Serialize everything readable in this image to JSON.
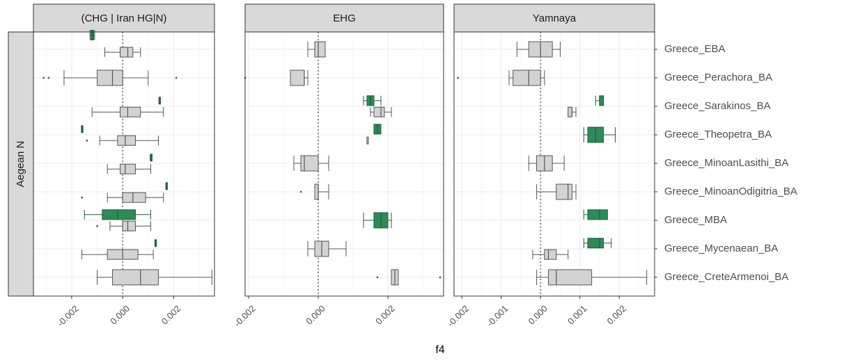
{
  "chart_data": {
    "type": "boxplot",
    "xlabel": "f4",
    "row_strip": "Aegean N",
    "categories": [
      "Greece_EBA",
      "Greece_Perachora_BA",
      "Greece_Sarakinos_BA",
      "Greece_Theopetra_BA",
      "Greece_MinoanLasithi_BA",
      "Greece_MinoanOdigitria_BA",
      "Greece_MBA",
      "Greece_Mycenaean_BA",
      "Greece_CreteArmenoi_BA"
    ],
    "colors": {
      "highlight": "#2e8b57",
      "normal": "#d3d3d3",
      "outline": "#555555"
    },
    "panels": [
      {
        "title": "(CHG | Iran HG|N)",
        "xlim": [
          -0.0035,
          0.0036
        ],
        "xticks": [
          -0.002,
          0.0,
          0.002
        ],
        "xtick_labels": [
          "-0.002",
          "0.000",
          "0.002"
        ],
        "boxes": [
          {
            "slot": 0.5,
            "color": "highlight",
            "stats": [
              -0.00128,
              -0.00124,
              -0.0012,
              -0.00114,
              -0.0011
            ],
            "outliers": []
          },
          {
            "slot": 1.1,
            "color": "normal",
            "stats": [
              -0.0007,
              -0.0001,
              0.0002,
              0.0004,
              0.0007
            ],
            "outliers": []
          },
          {
            "slot": 2,
            "color": "normal",
            "stats": [
              -0.0023,
              -0.001,
              -0.0004,
              0.0,
              0.001
            ],
            "outliers": [
              -0.0031,
              -0.0029,
              0.0021
            ]
          },
          {
            "slot": 2.8,
            "color": "highlight",
            "stats": [
              0.00142,
              0.00143,
              0.00144,
              0.00145,
              0.00146
            ],
            "outliers": []
          },
          {
            "slot": 3.2,
            "color": "normal",
            "stats": [
              -0.0012,
              -0.0001,
              0.0002,
              0.0007,
              0.0016
            ],
            "outliers": []
          },
          {
            "slot": 3.8,
            "color": "highlight",
            "stats": [
              -0.00162,
              -0.00161,
              -0.0016,
              -0.00159,
              -0.00158
            ],
            "outliers": []
          },
          {
            "slot": 4.2,
            "color": "normal",
            "stats": [
              -0.0009,
              -0.0002,
              0.0001,
              0.0005,
              0.0014
            ],
            "outliers": [
              -0.0014
            ]
          },
          {
            "slot": 4.8,
            "color": "highlight",
            "stats": [
              0.00108,
              0.0011,
              0.00111,
              0.00112,
              0.00114
            ],
            "outliers": []
          },
          {
            "slot": 5.2,
            "color": "normal",
            "stats": [
              -0.0006,
              -0.0001,
              0.0001,
              0.0005,
              0.0011
            ],
            "outliers": []
          },
          {
            "slot": 5.8,
            "color": "highlight",
            "stats": [
              0.00169,
              0.0017,
              0.00171,
              0.00172,
              0.00173
            ],
            "outliers": []
          },
          {
            "slot": 6.2,
            "color": "normal",
            "stats": [
              -0.0006,
              0.0,
              0.0004,
              0.0009,
              0.0016
            ],
            "outliers": [
              -0.0016
            ]
          },
          {
            "slot": 6.8,
            "color": "highlight",
            "stats": [
              -0.0015,
              -0.0008,
              -0.0002,
              0.0005,
              0.0011
            ],
            "outliers": []
          },
          {
            "slot": 7.2,
            "color": "normal",
            "stats": [
              -0.0005,
              0.0,
              0.0002,
              0.0005,
              0.0011
            ],
            "outliers": [
              -0.001
            ]
          },
          {
            "slot": 7.8,
            "color": "highlight",
            "stats": [
              0.00126,
              0.00127,
              0.00128,
              0.00129,
              0.0013
            ],
            "outliers": []
          },
          {
            "slot": 8.2,
            "color": "normal",
            "stats": [
              -0.0016,
              -0.0006,
              0.0,
              0.0006,
              0.0012
            ],
            "outliers": []
          },
          {
            "slot": 9,
            "color": "normal",
            "stats": [
              -0.001,
              -0.0004,
              0.0007,
              0.0014,
              0.0035
            ],
            "outliers": []
          }
        ]
      },
      {
        "title": "EHG",
        "xlim": [
          -0.0021,
          0.0036
        ],
        "xticks": [
          -0.002,
          0.0,
          0.002
        ],
        "xtick_labels": [
          "-0.002",
          "0.000",
          "0.002"
        ],
        "boxes": [
          {
            "slot": 1,
            "color": "normal",
            "stats": [
              -0.0003,
              -0.0001,
              0.0,
              0.0002,
              0.0002
            ],
            "outliers": []
          },
          {
            "slot": 2,
            "color": "normal",
            "stats": [
              -0.0008,
              -0.0008,
              -0.0004,
              -0.0004,
              -0.0003
            ],
            "outliers": [
              -0.0021
            ]
          },
          {
            "slot": 2.8,
            "color": "highlight",
            "stats": [
              0.0013,
              0.0014,
              0.0015,
              0.0016,
              0.0018
            ],
            "outliers": []
          },
          {
            "slot": 3.2,
            "color": "normal",
            "stats": [
              0.0015,
              0.0016,
              0.0018,
              0.0019,
              0.0021
            ],
            "outliers": []
          },
          {
            "slot": 3.8,
            "color": "highlight",
            "stats": [
              0.0016,
              0.0016,
              0.0017,
              0.0018,
              0.0018
            ],
            "outliers": []
          },
          {
            "slot": 4.2,
            "color": "normal",
            "stats": [
              0.0014,
              0.0014,
              0.0014,
              0.0014,
              0.0014
            ],
            "outliers": []
          },
          {
            "slot": 5,
            "color": "normal",
            "stats": [
              -0.0007,
              -0.0005,
              -0.0004,
              0.0,
              0.0003
            ],
            "outliers": []
          },
          {
            "slot": 6,
            "color": "normal",
            "stats": [
              -0.0001,
              -0.0001,
              0.0,
              0.0,
              0.0003
            ],
            "outliers": [
              -0.0005
            ]
          },
          {
            "slot": 7,
            "color": "highlight",
            "stats": [
              0.0013,
              0.0016,
              0.0018,
              0.002,
              0.0021
            ],
            "outliers": []
          },
          {
            "slot": 8,
            "color": "normal",
            "stats": [
              -0.0003,
              -0.0001,
              0.0001,
              0.0003,
              0.0008
            ],
            "outliers": []
          },
          {
            "slot": 9,
            "color": "normal",
            "stats": [
              0.0021,
              0.0021,
              0.0022,
              0.0023,
              0.0023
            ],
            "outliers": [
              0.0017,
              0.0035
            ]
          }
        ]
      },
      {
        "title": "Yamnaya",
        "xlim": [
          -0.0022,
          0.0029
        ],
        "xticks": [
          -0.002,
          -0.001,
          0.0,
          0.001,
          0.002
        ],
        "xtick_labels": [
          "-0.002",
          "-0.001",
          "0.000",
          "0.001",
          "0.002"
        ],
        "boxes": [
          {
            "slot": 1,
            "color": "normal",
            "stats": [
              -0.0006,
              -0.0003,
              0.0,
              0.0003,
              0.0005
            ],
            "outliers": []
          },
          {
            "slot": 2,
            "color": "normal",
            "stats": [
              -0.0008,
              -0.0007,
              -0.0003,
              0.0,
              0.0001
            ],
            "outliers": [
              -0.0021
            ]
          },
          {
            "slot": 2.8,
            "color": "highlight",
            "stats": [
              0.0014,
              0.0015,
              0.0015,
              0.0016,
              0.0016
            ],
            "outliers": []
          },
          {
            "slot": 3.2,
            "color": "normal",
            "stats": [
              0.0007,
              0.0007,
              0.0008,
              0.0008,
              0.0009
            ],
            "outliers": []
          },
          {
            "slot": 4,
            "color": "highlight",
            "stats": [
              0.0011,
              0.0012,
              0.0014,
              0.0016,
              0.0019
            ],
            "outliers": []
          },
          {
            "slot": 5,
            "color": "normal",
            "stats": [
              -0.0003,
              -0.0001,
              0.0001,
              0.0003,
              0.0006
            ],
            "outliers": []
          },
          {
            "slot": 6,
            "color": "normal",
            "stats": [
              -0.0001,
              0.0004,
              0.0007,
              0.0008,
              0.0009
            ],
            "outliers": []
          },
          {
            "slot": 6.8,
            "color": "highlight",
            "stats": [
              0.0011,
              0.0012,
              0.0015,
              0.0017,
              0.0017
            ],
            "outliers": []
          },
          {
            "slot": 7.8,
            "color": "highlight",
            "stats": [
              0.0011,
              0.0012,
              0.0015,
              0.0016,
              0.0018
            ],
            "outliers": []
          },
          {
            "slot": 8.2,
            "color": "normal",
            "stats": [
              -0.0002,
              0.0001,
              0.0002,
              0.0004,
              0.0007
            ],
            "outliers": []
          },
          {
            "slot": 9,
            "color": "normal",
            "stats": [
              -0.0001,
              0.0002,
              0.0004,
              0.0013,
              0.0027
            ],
            "outliers": []
          }
        ]
      }
    ]
  }
}
